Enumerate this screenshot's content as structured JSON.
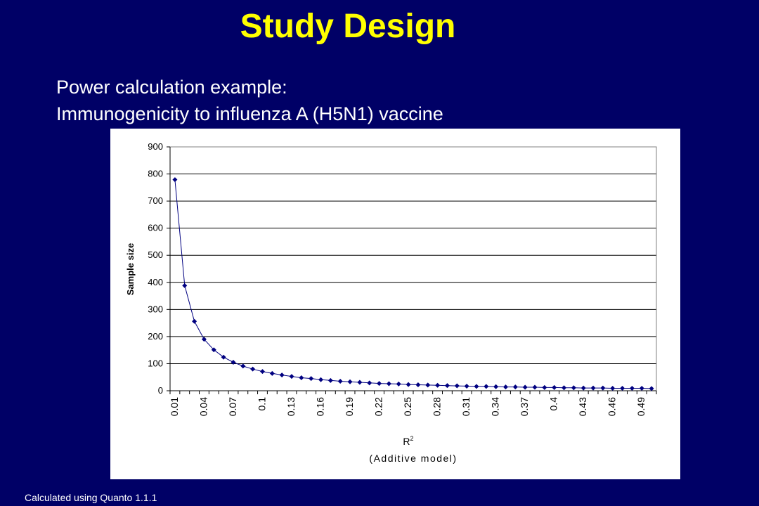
{
  "slide": {
    "title": "Study Design",
    "subtitle_line1": "Power calculation example:",
    "subtitle_line2": "Immunogenicity to influenza A (H5N1) vaccine",
    "footnote": "Calculated using Quanto 1.1.1"
  },
  "colors": {
    "background": "#000066",
    "title": "#ffff00",
    "text": "#ffffff",
    "series": "#000080"
  },
  "chart_data": {
    "type": "line",
    "marker": "diamond",
    "x": [
      0.01,
      0.02,
      0.03,
      0.04,
      0.05,
      0.06,
      0.07,
      0.08,
      0.09,
      0.1,
      0.11,
      0.12,
      0.13,
      0.14,
      0.15,
      0.16,
      0.17,
      0.18,
      0.19,
      0.2,
      0.21,
      0.22,
      0.23,
      0.24,
      0.25,
      0.26,
      0.27,
      0.28,
      0.29,
      0.3,
      0.31,
      0.32,
      0.33,
      0.34,
      0.35,
      0.36,
      0.37,
      0.38,
      0.39,
      0.4,
      0.41,
      0.42,
      0.43,
      0.44,
      0.45,
      0.46,
      0.47,
      0.48,
      0.49,
      0.5
    ],
    "x_tick_labels": [
      "0.01",
      "0.04",
      "0.07",
      "0.1",
      "0.13",
      "0.16",
      "0.19",
      "0.22",
      "0.25",
      "0.28",
      "0.31",
      "0.34",
      "0.37",
      "0.4",
      "0.43",
      "0.46",
      "0.49"
    ],
    "x_tick_every": 3,
    "values": [
      779,
      388,
      256,
      190,
      151,
      124,
      105,
      91,
      80,
      71,
      64,
      58,
      53,
      48,
      45,
      41,
      38,
      35,
      33,
      31,
      29,
      27,
      26,
      25,
      23,
      22,
      21,
      20,
      19,
      18,
      17,
      16,
      16,
      15,
      14,
      14,
      13,
      13,
      12,
      12,
      11,
      11,
      10,
      10,
      10,
      9,
      9,
      9,
      9,
      8
    ],
    "xlabel": "R",
    "xlabel_superscript": "2",
    "xlabel_line2": "(Additive model)",
    "ylabel": "Sample size",
    "ylim": [
      0,
      900
    ],
    "y_ticks": [
      0,
      100,
      200,
      300,
      400,
      500,
      600,
      700,
      800,
      900
    ],
    "grid": "horizontal",
    "legend": "none"
  }
}
